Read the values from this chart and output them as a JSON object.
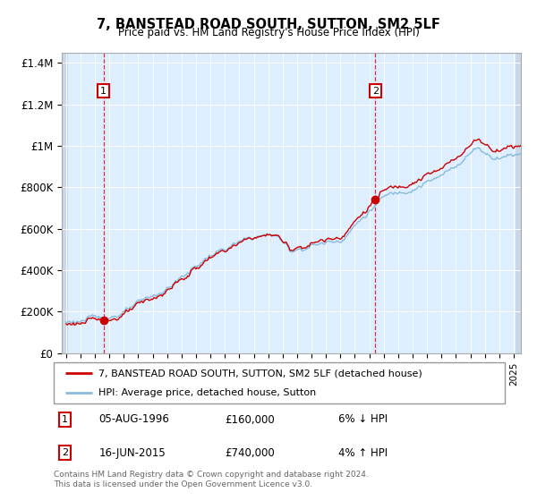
{
  "title": "7, BANSTEAD ROAD SOUTH, SUTTON, SM2 5LF",
  "subtitle": "Price paid vs. HM Land Registry's House Price Index (HPI)",
  "property_label": "7, BANSTEAD ROAD SOUTH, SUTTON, SM2 5LF (detached house)",
  "hpi_label": "HPI: Average price, detached house, Sutton",
  "transaction1_date": "05-AUG-1996",
  "transaction1_price": 160000,
  "transaction1_note": "6% ↓ HPI",
  "transaction2_date": "16-JUN-2015",
  "transaction2_price": 740000,
  "transaction2_note": "4% ↑ HPI",
  "copyright": "Contains HM Land Registry data © Crown copyright and database right 2024.\nThis data is licensed under the Open Government Licence v3.0.",
  "line_color_property": "#cc0000",
  "line_color_hpi": "#88bbdd",
  "marker_color_property": "#cc0000",
  "background_color": "#ddeeff",
  "yticks": [
    0,
    200000,
    400000,
    600000,
    800000,
    1000000,
    1200000,
    1400000
  ],
  "ytick_labels": [
    "£0",
    "£200K",
    "£400K",
    "£600K",
    "£800K",
    "£1M",
    "£1.2M",
    "£1.4M"
  ],
  "xstart": 1994,
  "xend": 2025,
  "t1_year": 1996.583,
  "t2_year": 2015.417
}
